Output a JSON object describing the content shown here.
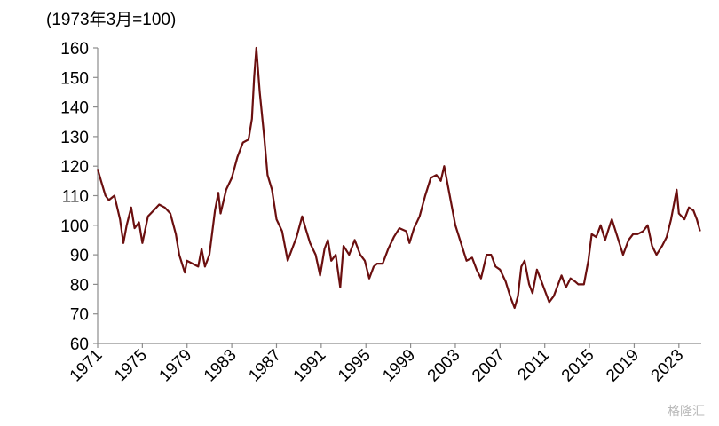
{
  "chart_data": {
    "type": "line",
    "y_label": "(1973年3月=100)",
    "watermark": "格隆汇",
    "xlim": [
      1971,
      2025
    ],
    "xticks": [
      1971,
      1975,
      1979,
      1983,
      1987,
      1991,
      1995,
      1999,
      2003,
      2007,
      2011,
      2015,
      2019,
      2023
    ],
    "ylim": [
      60,
      160
    ],
    "yticks": [
      60,
      70,
      80,
      90,
      100,
      110,
      120,
      130,
      140,
      150,
      160
    ],
    "series": [
      {
        "color": "#6b0f0f",
        "x": [
          1971.0,
          1971.3,
          1971.7,
          1972.0,
          1972.5,
          1973.0,
          1973.3,
          1973.6,
          1974.0,
          1974.3,
          1974.7,
          1975.0,
          1975.5,
          1976.0,
          1976.5,
          1977.0,
          1977.5,
          1978.0,
          1978.3,
          1978.8,
          1979.0,
          1979.5,
          1980.0,
          1980.3,
          1980.6,
          1981.0,
          1981.5,
          1981.8,
          1982.0,
          1982.5,
          1983.0,
          1983.5,
          1984.0,
          1984.5,
          1984.8,
          1985.0,
          1985.2,
          1985.5,
          1985.9,
          1986.2,
          1986.6,
          1987.0,
          1987.5,
          1988.0,
          1988.4,
          1988.8,
          1989.3,
          1989.6,
          1990.0,
          1990.5,
          1990.9,
          1991.3,
          1991.6,
          1991.9,
          1992.3,
          1992.7,
          1993.0,
          1993.5,
          1994.0,
          1994.5,
          1994.9,
          1995.3,
          1995.7,
          1996.0,
          1996.5,
          1997.0,
          1997.5,
          1998.0,
          1998.6,
          1998.9,
          1999.3,
          1999.8,
          2000.3,
          2000.8,
          2001.3,
          2001.7,
          2002.0,
          2002.5,
          2003.0,
          2003.5,
          2004.0,
          2004.5,
          2004.9,
          2005.3,
          2005.8,
          2006.2,
          2006.6,
          2007.0,
          2007.5,
          2007.9,
          2008.3,
          2008.6,
          2008.9,
          2009.2,
          2009.6,
          2009.9,
          2010.3,
          2010.6,
          2011.0,
          2011.4,
          2011.8,
          2012.2,
          2012.5,
          2012.9,
          2013.3,
          2013.7,
          2014.0,
          2014.5,
          2014.9,
          2015.2,
          2015.6,
          2016.0,
          2016.4,
          2016.9,
          2017.0,
          2017.5,
          2018.0,
          2018.5,
          2018.9,
          2019.3,
          2019.8,
          2020.2,
          2020.6,
          2021.0,
          2021.5,
          2021.9,
          2022.3,
          2022.8,
          2023.0,
          2023.5,
          2023.9,
          2024.3,
          2024.6,
          2024.9
        ],
        "values": [
          119,
          115,
          110,
          108.5,
          110,
          102,
          94,
          100,
          106,
          99,
          101,
          94,
          103,
          105,
          107,
          106,
          104,
          97,
          90,
          84,
          88,
          87,
          86,
          92,
          86,
          90,
          105,
          111,
          104,
          112,
          116,
          123,
          128,
          129,
          136,
          150,
          160,
          145,
          130,
          117,
          112,
          102,
          98,
          88,
          92,
          96,
          103,
          99,
          94,
          90,
          83,
          92,
          95,
          88,
          90,
          79,
          93,
          90,
          95,
          90,
          88,
          82,
          86,
          87,
          87,
          92,
          96,
          99,
          98,
          94,
          99,
          103,
          110,
          116,
          117,
          115,
          120,
          110,
          100,
          94,
          88,
          89,
          85,
          82,
          90,
          90,
          86,
          85,
          81,
          76,
          72,
          76,
          86,
          88,
          80,
          77,
          85,
          82,
          78,
          74,
          76,
          80,
          83,
          79,
          82,
          81,
          80,
          80,
          88,
          97,
          96,
          100,
          95,
          101,
          102,
          96,
          90,
          95,
          97,
          97,
          98,
          100,
          93,
          90,
          93,
          96,
          102,
          112,
          104,
          102,
          106,
          105,
          102,
          98
        ]
      }
    ]
  }
}
